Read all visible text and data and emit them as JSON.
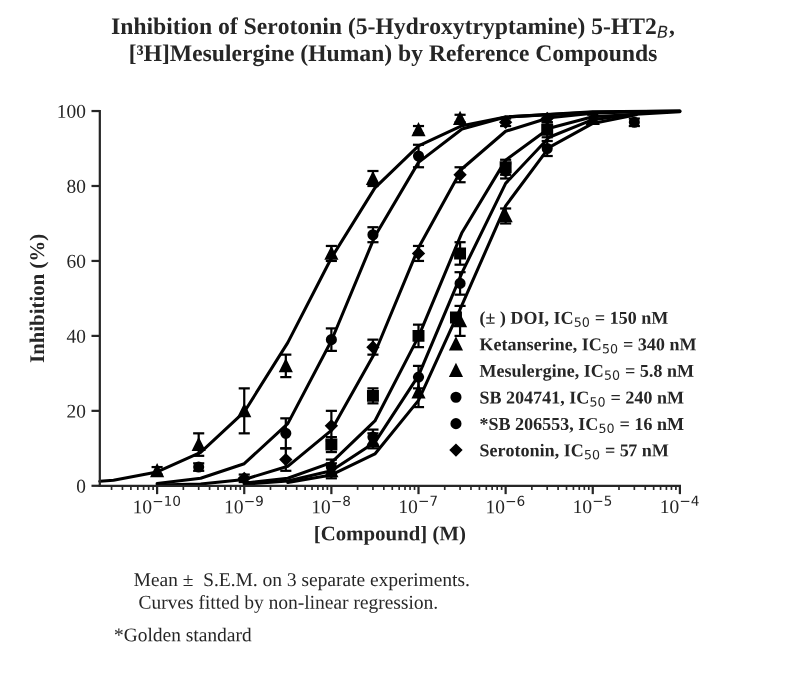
{
  "chart_data": {
    "type": "scatter",
    "title": "Inhibition of Serotonin (5-Hydroxytryptamine) 5-HT2$_{B}$,\n[³H]Mesulergine (Human) by Reference Compounds",
    "xlabel": "[Compound] (M)",
    "ylabel": "Inhibition (%)",
    "log": "x",
    "xlim": [
      2.2e-11,
      0.0001
    ],
    "ylim": [
      0,
      100
    ],
    "xticks": [
      {
        "value": 1e-10,
        "label": "10$^{−10}$"
      },
      {
        "value": 1e-09,
        "label": "10$^{−9}$"
      },
      {
        "value": 1e-08,
        "label": "10$^{−8}$"
      },
      {
        "value": 1e-07,
        "label": "10$^{−7}$"
      },
      {
        "value": 1e-06,
        "label": "10$^{−6}$"
      },
      {
        "value": 1e-05,
        "label": "10$^{−5}$"
      },
      {
        "value": 0.0001,
        "label": "10$^{−4}$"
      }
    ],
    "yticks": [
      0,
      20,
      40,
      60,
      80,
      100
    ],
    "grid": false,
    "legend": "bottom right",
    "series": [
      {
        "name": "(± ) DOI, IC$_{50}$ = 150 nM",
        "marker": "square",
        "color": "#000000",
        "x": [
          1e-08,
          3e-08,
          1e-07,
          3e-07,
          1e-06,
          3e-06
        ],
        "values": [
          11,
          24,
          40,
          62,
          85,
          95
        ],
        "errors": [
          2,
          2,
          3,
          3,
          2,
          2
        ]
      },
      {
        "name": "Ketanserine, IC$_{50}$ = 340 nM",
        "marker": "triangle",
        "color": "#000000",
        "x": [
          1e-08,
          3e-08,
          1e-07,
          3e-07,
          1e-06,
          3e-06,
          1e-05
        ],
        "values": [
          4,
          12,
          25,
          44,
          72,
          null,
          98
        ],
        "errors": [
          2,
          2,
          4,
          4,
          2,
          null,
          1
        ]
      },
      {
        "name": "Mesulergine, IC$_{50}$ = 5.8 nM",
        "marker": "triangle",
        "color": "#000000",
        "x": [
          1e-10,
          3e-10,
          1e-09,
          3e-09,
          1e-08,
          3e-08,
          1e-07,
          3e-07
        ],
        "values": [
          4,
          11,
          20,
          32,
          62,
          82,
          95,
          98
        ],
        "errors": [
          1,
          3,
          6,
          3,
          2,
          2,
          1,
          1
        ]
      },
      {
        "name": "SB 204741, IC$_{50}$ = 240 nM",
        "marker": "circle",
        "color": "#000000",
        "x": [
          1e-08,
          3e-08,
          1e-07,
          3e-07,
          1e-06,
          3e-06,
          1e-05,
          3e-05
        ],
        "values": [
          5,
          13,
          29,
          54,
          84,
          90,
          null,
          97
        ],
        "errors": [
          2,
          2,
          3,
          3,
          2,
          2,
          null,
          1
        ]
      },
      {
        "name": "*SB 206553, IC$_{50}$ = 16 nM",
        "marker": "circle",
        "color": "#000000",
        "x": [
          3e-10,
          3e-09,
          1e-08,
          3e-08,
          1e-07
        ],
        "values": [
          5,
          14,
          39,
          67,
          88
        ],
        "errors": [
          1,
          4,
          3,
          2,
          3
        ]
      },
      {
        "name": "Serotonin, IC$_{50}$ = 57 nM",
        "marker": "diamond",
        "color": "#000000",
        "x": [
          1e-09,
          3e-09,
          1e-08,
          3e-08,
          1e-07,
          3e-07,
          1e-06,
          3e-06
        ],
        "values": [
          2,
          7,
          16,
          37,
          62,
          83,
          97,
          98
        ],
        "errors": [
          1,
          3,
          4,
          2,
          2,
          2,
          1,
          1
        ]
      },
      {
        "type": "line",
        "color": "#000000",
        "x": [
          1e-09,
          3.16e-09,
          1e-08,
          3.16e-08,
          1e-07,
          3.16e-07,
          1e-06,
          3.16e-06,
          1e-05,
          0.0001
        ],
        "values": [
          0.7,
          2,
          6.2,
          17.3,
          39.8,
          67.6,
          86.9,
          95.4,
          98.5,
          99.8
        ]
      },
      {
        "type": "line",
        "color": "#000000",
        "x": [
          3.16e-09,
          1e-08,
          3.16e-08,
          1e-07,
          3.16e-07,
          1e-06,
          3.16e-06,
          1e-05,
          3.16e-05
        ],
        "values": [
          0.9,
          2.9,
          8.5,
          22.8,
          48.3,
          74.7,
          90.3,
          96.7,
          99
        ]
      },
      {
        "type": "line",
        "color": "#000000",
        "x": [
          2.2e-11,
          3.16e-11,
          1e-10,
          3.16e-10,
          1e-09,
          3.16e-09,
          1e-08,
          3.16e-08,
          1e-07,
          3.16e-07,
          1e-06,
          1e-05,
          0.0001
        ],
        "values": [
          1.2,
          1.5,
          3.7,
          8.9,
          19.7,
          38.2,
          60.8,
          79.5,
          90.7,
          96.1,
          98.4,
          99.7,
          100
        ]
      },
      {
        "type": "line",
        "color": "#000000",
        "x": [
          1e-09,
          3.16e-09,
          1e-08,
          3.16e-08,
          1e-07,
          3.16e-07,
          1e-06,
          3.16e-06,
          1e-05,
          3.16e-05
        ],
        "values": [
          0.4,
          1.3,
          4,
          11.6,
          29.4,
          56.9,
          80.7,
          93,
          97.7,
          99.2
        ]
      },
      {
        "type": "line",
        "color": "#000000",
        "x": [
          1e-10,
          3.16e-10,
          1e-09,
          3.16e-09,
          1e-08,
          3.16e-08,
          1e-07,
          3.16e-07,
          1e-06,
          1e-05,
          0.0001
        ],
        "values": [
          0.6,
          2,
          5.9,
          16.6,
          38.7,
          66.6,
          86.3,
          95.2,
          98.4,
          99.8,
          100
        ]
      },
      {
        "type": "line",
        "color": "#000000",
        "x": [
          1e-10,
          3.16e-10,
          1e-09,
          3.16e-09,
          1e-08,
          3.16e-08,
          1e-07,
          3.16e-07,
          1e-06,
          3.16e-06,
          1e-05,
          3e-05
        ],
        "values": [
          0.2,
          0.5,
          1.7,
          5.2,
          14.8,
          35.5,
          63.5,
          84.6,
          94.6,
          98.2,
          99.4,
          99.8
        ]
      }
    ],
    "annotations": [
      "Mean ±  S.E.M. on 3 separate experiments.\n Curves fitted by non-linear regression.",
      "*Golden standard"
    ]
  }
}
